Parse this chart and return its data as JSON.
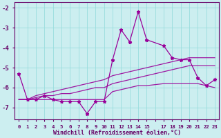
{
  "background_color": "#cceef0",
  "grid_color": "#99dddd",
  "line_color": "#990099",
  "xlabel": "Windchill (Refroidissement éolien,°C)",
  "ylim": [
    -7.6,
    -1.7
  ],
  "xlim": [
    -0.5,
    23.5
  ],
  "yticks": [
    -7,
    -6,
    -5,
    -4,
    -3,
    -2
  ],
  "xtick_labels": [
    "0",
    "1",
    "2",
    "3",
    "4",
    "5",
    "6",
    "7",
    "8",
    "9",
    "10",
    "11",
    "12",
    "13",
    "14",
    "15",
    "",
    "17",
    "18",
    "19",
    "20",
    "21",
    "22",
    "23"
  ],
  "series1_x": [
    0,
    1,
    2,
    3,
    4,
    5,
    6,
    7,
    8,
    9,
    10,
    11,
    12,
    13,
    14,
    15,
    17,
    18,
    19,
    20,
    21,
    22,
    23
  ],
  "series1_y": [
    -5.3,
    -6.6,
    -6.6,
    -6.4,
    -6.6,
    -6.7,
    -6.7,
    -6.7,
    -7.3,
    -6.7,
    -6.7,
    -4.6,
    -3.1,
    -3.7,
    -2.2,
    -3.6,
    -3.9,
    -4.5,
    -4.6,
    -4.6,
    -5.5,
    -5.9,
    -5.6
  ],
  "series2_x": [
    0,
    1,
    2,
    3,
    4,
    5,
    6,
    7,
    8,
    9,
    10,
    11,
    12,
    13,
    14,
    15,
    17,
    18,
    19,
    20,
    21,
    22,
    23
  ],
  "series2_y": [
    -6.6,
    -6.6,
    -6.4,
    -6.3,
    -6.2,
    -6.1,
    -6.0,
    -5.9,
    -5.8,
    -5.7,
    -5.6,
    -5.4,
    -5.3,
    -5.2,
    -5.1,
    -5.0,
    -4.8,
    -4.7,
    -4.6,
    -4.5,
    -4.5,
    -4.5,
    -4.5
  ],
  "series3_x": [
    0,
    1,
    2,
    3,
    4,
    5,
    6,
    7,
    8,
    9,
    10,
    11,
    12,
    13,
    14,
    15,
    17,
    18,
    19,
    20,
    21,
    22,
    23
  ],
  "series3_y": [
    -6.6,
    -6.6,
    -6.5,
    -6.4,
    -6.4,
    -6.3,
    -6.3,
    -6.2,
    -6.1,
    -6.0,
    -6.0,
    -5.8,
    -5.7,
    -5.6,
    -5.5,
    -5.4,
    -5.2,
    -5.1,
    -5.0,
    -4.9,
    -4.9,
    -4.9,
    -4.9
  ],
  "series4_x": [
    0,
    1,
    2,
    3,
    4,
    5,
    6,
    7,
    8,
    9,
    10,
    11,
    12,
    13,
    14,
    15,
    17,
    18,
    19,
    20,
    21,
    22,
    23
  ],
  "series4_y": [
    -6.6,
    -6.6,
    -6.6,
    -6.6,
    -6.6,
    -6.6,
    -6.6,
    -6.6,
    -6.6,
    -6.6,
    -6.6,
    -6.2,
    -6.1,
    -6.0,
    -5.9,
    -5.9,
    -5.8,
    -5.8,
    -5.8,
    -5.8,
    -5.8,
    -5.9,
    -6.0
  ]
}
